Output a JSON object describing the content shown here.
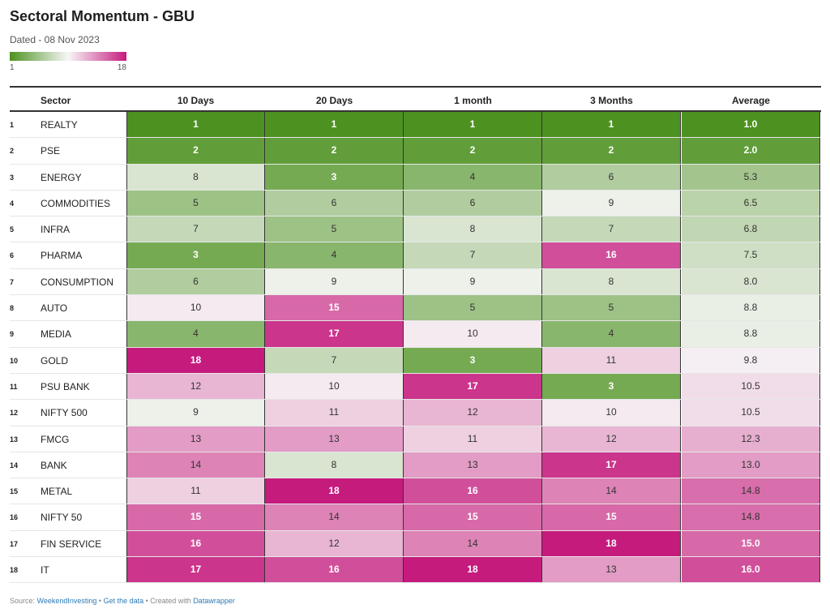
{
  "title": "Sectoral Momentum - GBU",
  "subtitle": "Dated - 08 Nov 2023",
  "legend": {
    "min_label": "1",
    "max_label": "18",
    "colors": [
      "#4d9221",
      "#f7f7f7",
      "#c51b7d"
    ]
  },
  "chart_data": {
    "type": "table",
    "columns": [
      "Sector",
      "10 Days",
      "20 Days",
      "1 month",
      "3 Months",
      "Average"
    ],
    "rows": [
      {
        "rank": "1",
        "sector": "REALTY",
        "values": [
          "1",
          "1",
          "1",
          "1",
          "1.0"
        ]
      },
      {
        "rank": "2",
        "sector": "PSE",
        "values": [
          "2",
          "2",
          "2",
          "2",
          "2.0"
        ]
      },
      {
        "rank": "3",
        "sector": "ENERGY",
        "values": [
          "8",
          "3",
          "4",
          "6",
          "5.3"
        ]
      },
      {
        "rank": "4",
        "sector": "COMMODITIES",
        "values": [
          "5",
          "6",
          "6",
          "9",
          "6.5"
        ]
      },
      {
        "rank": "5",
        "sector": "INFRA",
        "values": [
          "7",
          "5",
          "8",
          "7",
          "6.8"
        ]
      },
      {
        "rank": "6",
        "sector": "PHARMA",
        "values": [
          "3",
          "4",
          "7",
          "16",
          "7.5"
        ]
      },
      {
        "rank": "7",
        "sector": "CONSUMPTION",
        "values": [
          "6",
          "9",
          "9",
          "8",
          "8.0"
        ]
      },
      {
        "rank": "8",
        "sector": "AUTO",
        "values": [
          "10",
          "15",
          "5",
          "5",
          "8.8"
        ]
      },
      {
        "rank": "9",
        "sector": "MEDIA",
        "values": [
          "4",
          "17",
          "10",
          "4",
          "8.8"
        ]
      },
      {
        "rank": "10",
        "sector": "GOLD",
        "values": [
          "18",
          "7",
          "3",
          "11",
          "9.8"
        ]
      },
      {
        "rank": "11",
        "sector": "PSU BANK",
        "values": [
          "12",
          "10",
          "17",
          "3",
          "10.5"
        ]
      },
      {
        "rank": "12",
        "sector": "NIFTY 500",
        "values": [
          "9",
          "11",
          "12",
          "10",
          "10.5"
        ]
      },
      {
        "rank": "13",
        "sector": "FMCG",
        "values": [
          "13",
          "13",
          "11",
          "12",
          "12.3"
        ]
      },
      {
        "rank": "14",
        "sector": "BANK",
        "values": [
          "14",
          "8",
          "13",
          "17",
          "13.0"
        ]
      },
      {
        "rank": "15",
        "sector": "METAL",
        "values": [
          "11",
          "18",
          "16",
          "14",
          "14.8"
        ]
      },
      {
        "rank": "16",
        "sector": "NIFTY 50",
        "values": [
          "15",
          "14",
          "15",
          "15",
          "14.8"
        ]
      },
      {
        "rank": "17",
        "sector": "FIN SERVICE",
        "values": [
          "16",
          "12",
          "14",
          "18",
          "15.0"
        ]
      },
      {
        "rank": "18",
        "sector": "IT",
        "values": [
          "17",
          "16",
          "18",
          "13",
          "16.0"
        ]
      }
    ]
  },
  "footer": {
    "source_prefix": "Source: ",
    "source_link": "WeekendInvesting",
    "sep1": " • ",
    "get_data": "Get the data",
    "sep2": " • Created with ",
    "created_with": "Datawrapper"
  }
}
